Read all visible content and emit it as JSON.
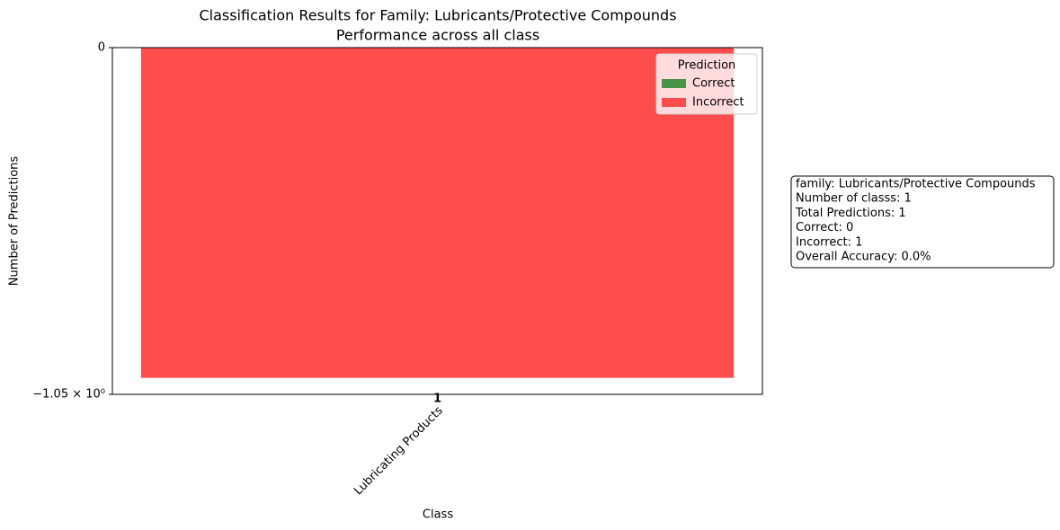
{
  "chart_data": {
    "type": "bar",
    "stacked": true,
    "title": "Classification Results for Family: Lubricants/Protective Compounds",
    "subtitle": "Performance across all class",
    "xlabel": "Class",
    "ylabel": "Number of Predictions",
    "categories": [
      "Lubricating Products"
    ],
    "bar_labels": [
      1
    ],
    "series": [
      {
        "name": "Correct",
        "color": "#4a934a",
        "values": [
          0
        ]
      },
      {
        "name": "Incorrect",
        "color": "#ff4c4c",
        "values": [
          -1
        ]
      }
    ],
    "ylim": [
      -1.05,
      0
    ],
    "yticks": [
      {
        "value": -1.05,
        "label": "−1.05 × 10⁰"
      },
      0
    ],
    "legend_title": "Prediction",
    "legend_position": "upper right",
    "info_box": [
      "family: Lubricants/Protective Compounds",
      "Number of classs: 1",
      "Total Predictions: 1",
      "Correct: 0",
      "Incorrect: 1",
      "Overall Accuracy: 0.0%"
    ]
  }
}
